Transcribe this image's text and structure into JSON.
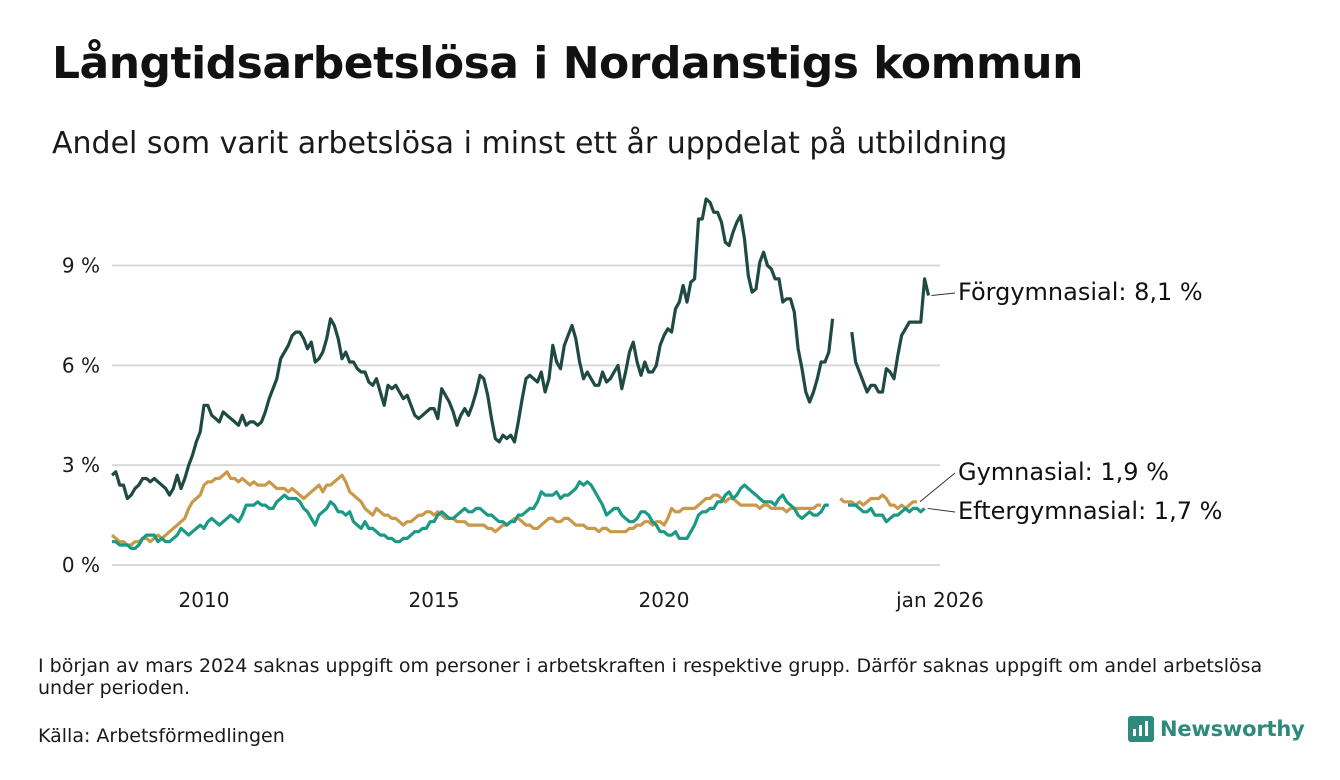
{
  "header": {
    "title": "Långtidsarbetslösa i Nordanstigs kommun",
    "subtitle": "Andel som varit arbetslösa i minst ett år uppdelat på utbildning"
  },
  "footer": {
    "note": "I början av mars 2024 saknas uppgift om personer i arbetskraften i respektive grupp. Därför saknas uppgift om andel arbetslösa under perioden.",
    "source": "Källa: Arbetsförmedlingen",
    "brand": "Newsworthy"
  },
  "colors": {
    "forgymnasial": "#1f4a44",
    "gymnasial": "#c9994b",
    "eftergymnasial": "#1a9a84",
    "grid": "#d9d9d9",
    "brand": "#2d8a7c"
  },
  "chart_data": {
    "type": "line",
    "x_start": 2008.0,
    "x_step": 0.08333,
    "xlim": [
      2008.0,
      2026.0
    ],
    "ylim": [
      0,
      11
    ],
    "yticks": [
      0,
      3,
      6,
      9
    ],
    "ytick_labels": [
      "0 %",
      "3 %",
      "6 %",
      "9 %"
    ],
    "xticks": [
      2010,
      2015,
      2020,
      2026
    ],
    "xtick_labels": [
      "2010",
      "2015",
      "2020",
      "jan 2026"
    ],
    "grid": "horizontal",
    "series": [
      {
        "key": "forgymnasial",
        "name": "Förgymnasial",
        "end_label": "Förgymnasial: 8,1 %",
        "values": [
          2.7,
          2.8,
          2.4,
          2.4,
          2.0,
          2.1,
          2.3,
          2.4,
          2.6,
          2.6,
          2.5,
          2.6,
          2.5,
          2.4,
          2.3,
          2.1,
          2.3,
          2.7,
          2.3,
          2.6,
          3.0,
          3.3,
          3.7,
          4.0,
          4.8,
          4.8,
          4.5,
          4.4,
          4.3,
          4.6,
          4.5,
          4.4,
          4.3,
          4.2,
          4.5,
          4.2,
          4.3,
          4.3,
          4.2,
          4.3,
          4.6,
          5.0,
          5.3,
          5.6,
          6.2,
          6.4,
          6.6,
          6.9,
          7.0,
          7.0,
          6.8,
          6.5,
          6.7,
          6.1,
          6.2,
          6.4,
          6.8,
          7.4,
          7.2,
          6.8,
          6.2,
          6.4,
          6.1,
          6.1,
          5.9,
          5.8,
          5.8,
          5.5,
          5.4,
          5.6,
          5.2,
          4.8,
          5.4,
          5.3,
          5.4,
          5.2,
          5.0,
          5.1,
          4.8,
          4.5,
          4.4,
          4.5,
          4.6,
          4.7,
          4.7,
          4.4,
          5.3,
          5.1,
          4.9,
          4.6,
          4.2,
          4.5,
          4.7,
          4.5,
          4.8,
          5.2,
          5.7,
          5.6,
          5.1,
          4.4,
          3.8,
          3.7,
          3.9,
          3.8,
          3.9,
          3.7,
          4.3,
          5.0,
          5.6,
          5.7,
          5.6,
          5.5,
          5.8,
          5.2,
          5.6,
          6.6,
          6.1,
          5.9,
          6.6,
          6.9,
          7.2,
          6.8,
          6.1,
          5.6,
          5.8,
          5.6,
          5.4,
          5.4,
          5.8,
          5.5,
          5.6,
          5.8,
          6.0,
          5.3,
          5.8,
          6.4,
          6.7,
          6.1,
          5.7,
          6.1,
          5.8,
          5.8,
          6.0,
          6.6,
          6.9,
          7.1,
          7.0,
          7.7,
          7.9,
          8.4,
          7.9,
          8.5,
          8.6,
          10.4,
          10.4,
          11.0,
          10.9,
          10.6,
          10.6,
          10.3,
          9.7,
          9.6,
          10.0,
          10.3,
          10.5,
          9.8,
          8.7,
          8.2,
          8.3,
          9.1,
          9.4,
          9.0,
          8.9,
          8.6,
          8.6,
          7.9,
          8.0,
          8.0,
          7.6,
          6.5,
          5.9,
          5.2,
          4.9,
          5.2,
          5.6,
          6.1,
          6.1,
          6.4,
          7.4,
          null,
          null,
          null,
          null,
          7.0,
          6.1,
          5.8,
          5.5,
          5.2,
          5.4,
          5.4,
          5.2,
          5.2,
          5.9,
          5.8,
          5.6,
          6.3,
          6.9,
          7.1,
          7.3,
          7.3,
          7.3,
          7.3,
          8.6,
          8.1
        ]
      },
      {
        "key": "gymnasial",
        "name": "Gymnasial",
        "end_label": "Gymnasial: 1,9 %",
        "values": [
          0.9,
          0.8,
          0.7,
          0.7,
          0.6,
          0.6,
          0.7,
          0.7,
          0.8,
          0.8,
          0.7,
          0.8,
          0.9,
          0.8,
          0.9,
          1.0,
          1.1,
          1.2,
          1.3,
          1.4,
          1.7,
          1.9,
          2.0,
          2.1,
          2.4,
          2.5,
          2.5,
          2.6,
          2.6,
          2.7,
          2.8,
          2.6,
          2.6,
          2.5,
          2.6,
          2.5,
          2.4,
          2.5,
          2.4,
          2.4,
          2.4,
          2.5,
          2.4,
          2.3,
          2.3,
          2.3,
          2.2,
          2.3,
          2.2,
          2.1,
          2.0,
          2.1,
          2.2,
          2.3,
          2.4,
          2.2,
          2.4,
          2.4,
          2.5,
          2.6,
          2.7,
          2.5,
          2.2,
          2.1,
          2.0,
          1.9,
          1.7,
          1.6,
          1.5,
          1.7,
          1.6,
          1.5,
          1.5,
          1.4,
          1.4,
          1.3,
          1.2,
          1.3,
          1.3,
          1.4,
          1.5,
          1.5,
          1.6,
          1.6,
          1.5,
          1.6,
          1.5,
          1.4,
          1.4,
          1.4,
          1.3,
          1.3,
          1.3,
          1.2,
          1.2,
          1.2,
          1.2,
          1.2,
          1.1,
          1.1,
          1.0,
          1.1,
          1.2,
          1.2,
          1.3,
          1.4,
          1.4,
          1.3,
          1.2,
          1.2,
          1.1,
          1.1,
          1.2,
          1.3,
          1.4,
          1.4,
          1.3,
          1.3,
          1.4,
          1.4,
          1.3,
          1.2,
          1.2,
          1.2,
          1.1,
          1.1,
          1.1,
          1.0,
          1.1,
          1.1,
          1.0,
          1.0,
          1.0,
          1.0,
          1.0,
          1.1,
          1.1,
          1.2,
          1.2,
          1.3,
          1.3,
          1.2,
          1.3,
          1.3,
          1.2,
          1.4,
          1.7,
          1.6,
          1.6,
          1.7,
          1.7,
          1.7,
          1.7,
          1.8,
          1.9,
          2.0,
          2.0,
          2.1,
          2.1,
          2.0,
          1.9,
          2.0,
          2.0,
          1.9,
          1.8,
          1.8,
          1.8,
          1.8,
          1.8,
          1.7,
          1.8,
          1.8,
          1.7,
          1.7,
          1.7,
          1.7,
          1.6,
          1.7,
          1.7,
          1.7,
          1.7,
          1.7,
          1.7,
          1.7,
          1.8,
          1.8,
          null,
          null,
          null,
          null,
          2.0,
          1.9,
          1.9,
          1.9,
          1.8,
          1.9,
          1.8,
          1.9,
          2.0,
          2.0,
          2.0,
          2.1,
          2.0,
          1.8,
          1.8,
          1.7,
          1.8,
          1.7,
          1.8,
          1.9,
          1.9
        ]
      },
      {
        "key": "eftergymnasial",
        "name": "Eftergymnasial",
        "end_label": "Eftergymnasial: 1,7 %",
        "values": [
          0.7,
          0.7,
          0.6,
          0.6,
          0.6,
          0.5,
          0.5,
          0.6,
          0.8,
          0.9,
          0.9,
          0.9,
          0.7,
          0.8,
          0.7,
          0.7,
          0.8,
          0.9,
          1.1,
          1.0,
          0.9,
          1.0,
          1.1,
          1.2,
          1.1,
          1.3,
          1.4,
          1.3,
          1.2,
          1.3,
          1.4,
          1.5,
          1.4,
          1.3,
          1.5,
          1.8,
          1.8,
          1.8,
          1.9,
          1.8,
          1.8,
          1.7,
          1.7,
          1.9,
          2.0,
          2.1,
          2.0,
          2.0,
          2.0,
          1.9,
          1.7,
          1.6,
          1.4,
          1.2,
          1.5,
          1.6,
          1.7,
          1.9,
          1.8,
          1.6,
          1.6,
          1.5,
          1.6,
          1.3,
          1.2,
          1.1,
          1.3,
          1.1,
          1.1,
          1.0,
          0.9,
          0.9,
          0.8,
          0.8,
          0.7,
          0.7,
          0.8,
          0.8,
          0.9,
          1.0,
          1.0,
          1.1,
          1.1,
          1.3,
          1.3,
          1.5,
          1.6,
          1.5,
          1.4,
          1.4,
          1.5,
          1.6,
          1.7,
          1.6,
          1.6,
          1.7,
          1.7,
          1.6,
          1.5,
          1.5,
          1.4,
          1.3,
          1.3,
          1.2,
          1.3,
          1.3,
          1.5,
          1.5,
          1.6,
          1.7,
          1.7,
          1.9,
          2.2,
          2.1,
          2.1,
          2.1,
          2.2,
          2.0,
          2.1,
          2.1,
          2.2,
          2.3,
          2.5,
          2.4,
          2.5,
          2.4,
          2.2,
          2.0,
          1.8,
          1.5,
          1.6,
          1.7,
          1.7,
          1.5,
          1.4,
          1.3,
          1.3,
          1.4,
          1.6,
          1.6,
          1.5,
          1.3,
          1.2,
          1.0,
          1.0,
          0.9,
          0.9,
          1.0,
          0.8,
          0.8,
          0.8,
          1.0,
          1.2,
          1.5,
          1.6,
          1.6,
          1.7,
          1.7,
          1.9,
          1.9,
          2.1,
          2.2,
          2.0,
          2.1,
          2.3,
          2.4,
          2.3,
          2.2,
          2.1,
          2.0,
          1.9,
          1.9,
          1.9,
          1.8,
          2.0,
          2.1,
          1.9,
          1.8,
          1.7,
          1.5,
          1.4,
          1.5,
          1.6,
          1.5,
          1.5,
          1.6,
          1.8,
          1.8,
          null,
          null,
          null,
          null,
          1.8,
          1.8,
          1.8,
          1.7,
          1.6,
          1.6,
          1.7,
          1.5,
          1.5,
          1.5,
          1.3,
          1.4,
          1.5,
          1.5,
          1.6,
          1.7,
          1.6,
          1.7,
          1.7,
          1.6,
          1.7
        ]
      }
    ]
  }
}
